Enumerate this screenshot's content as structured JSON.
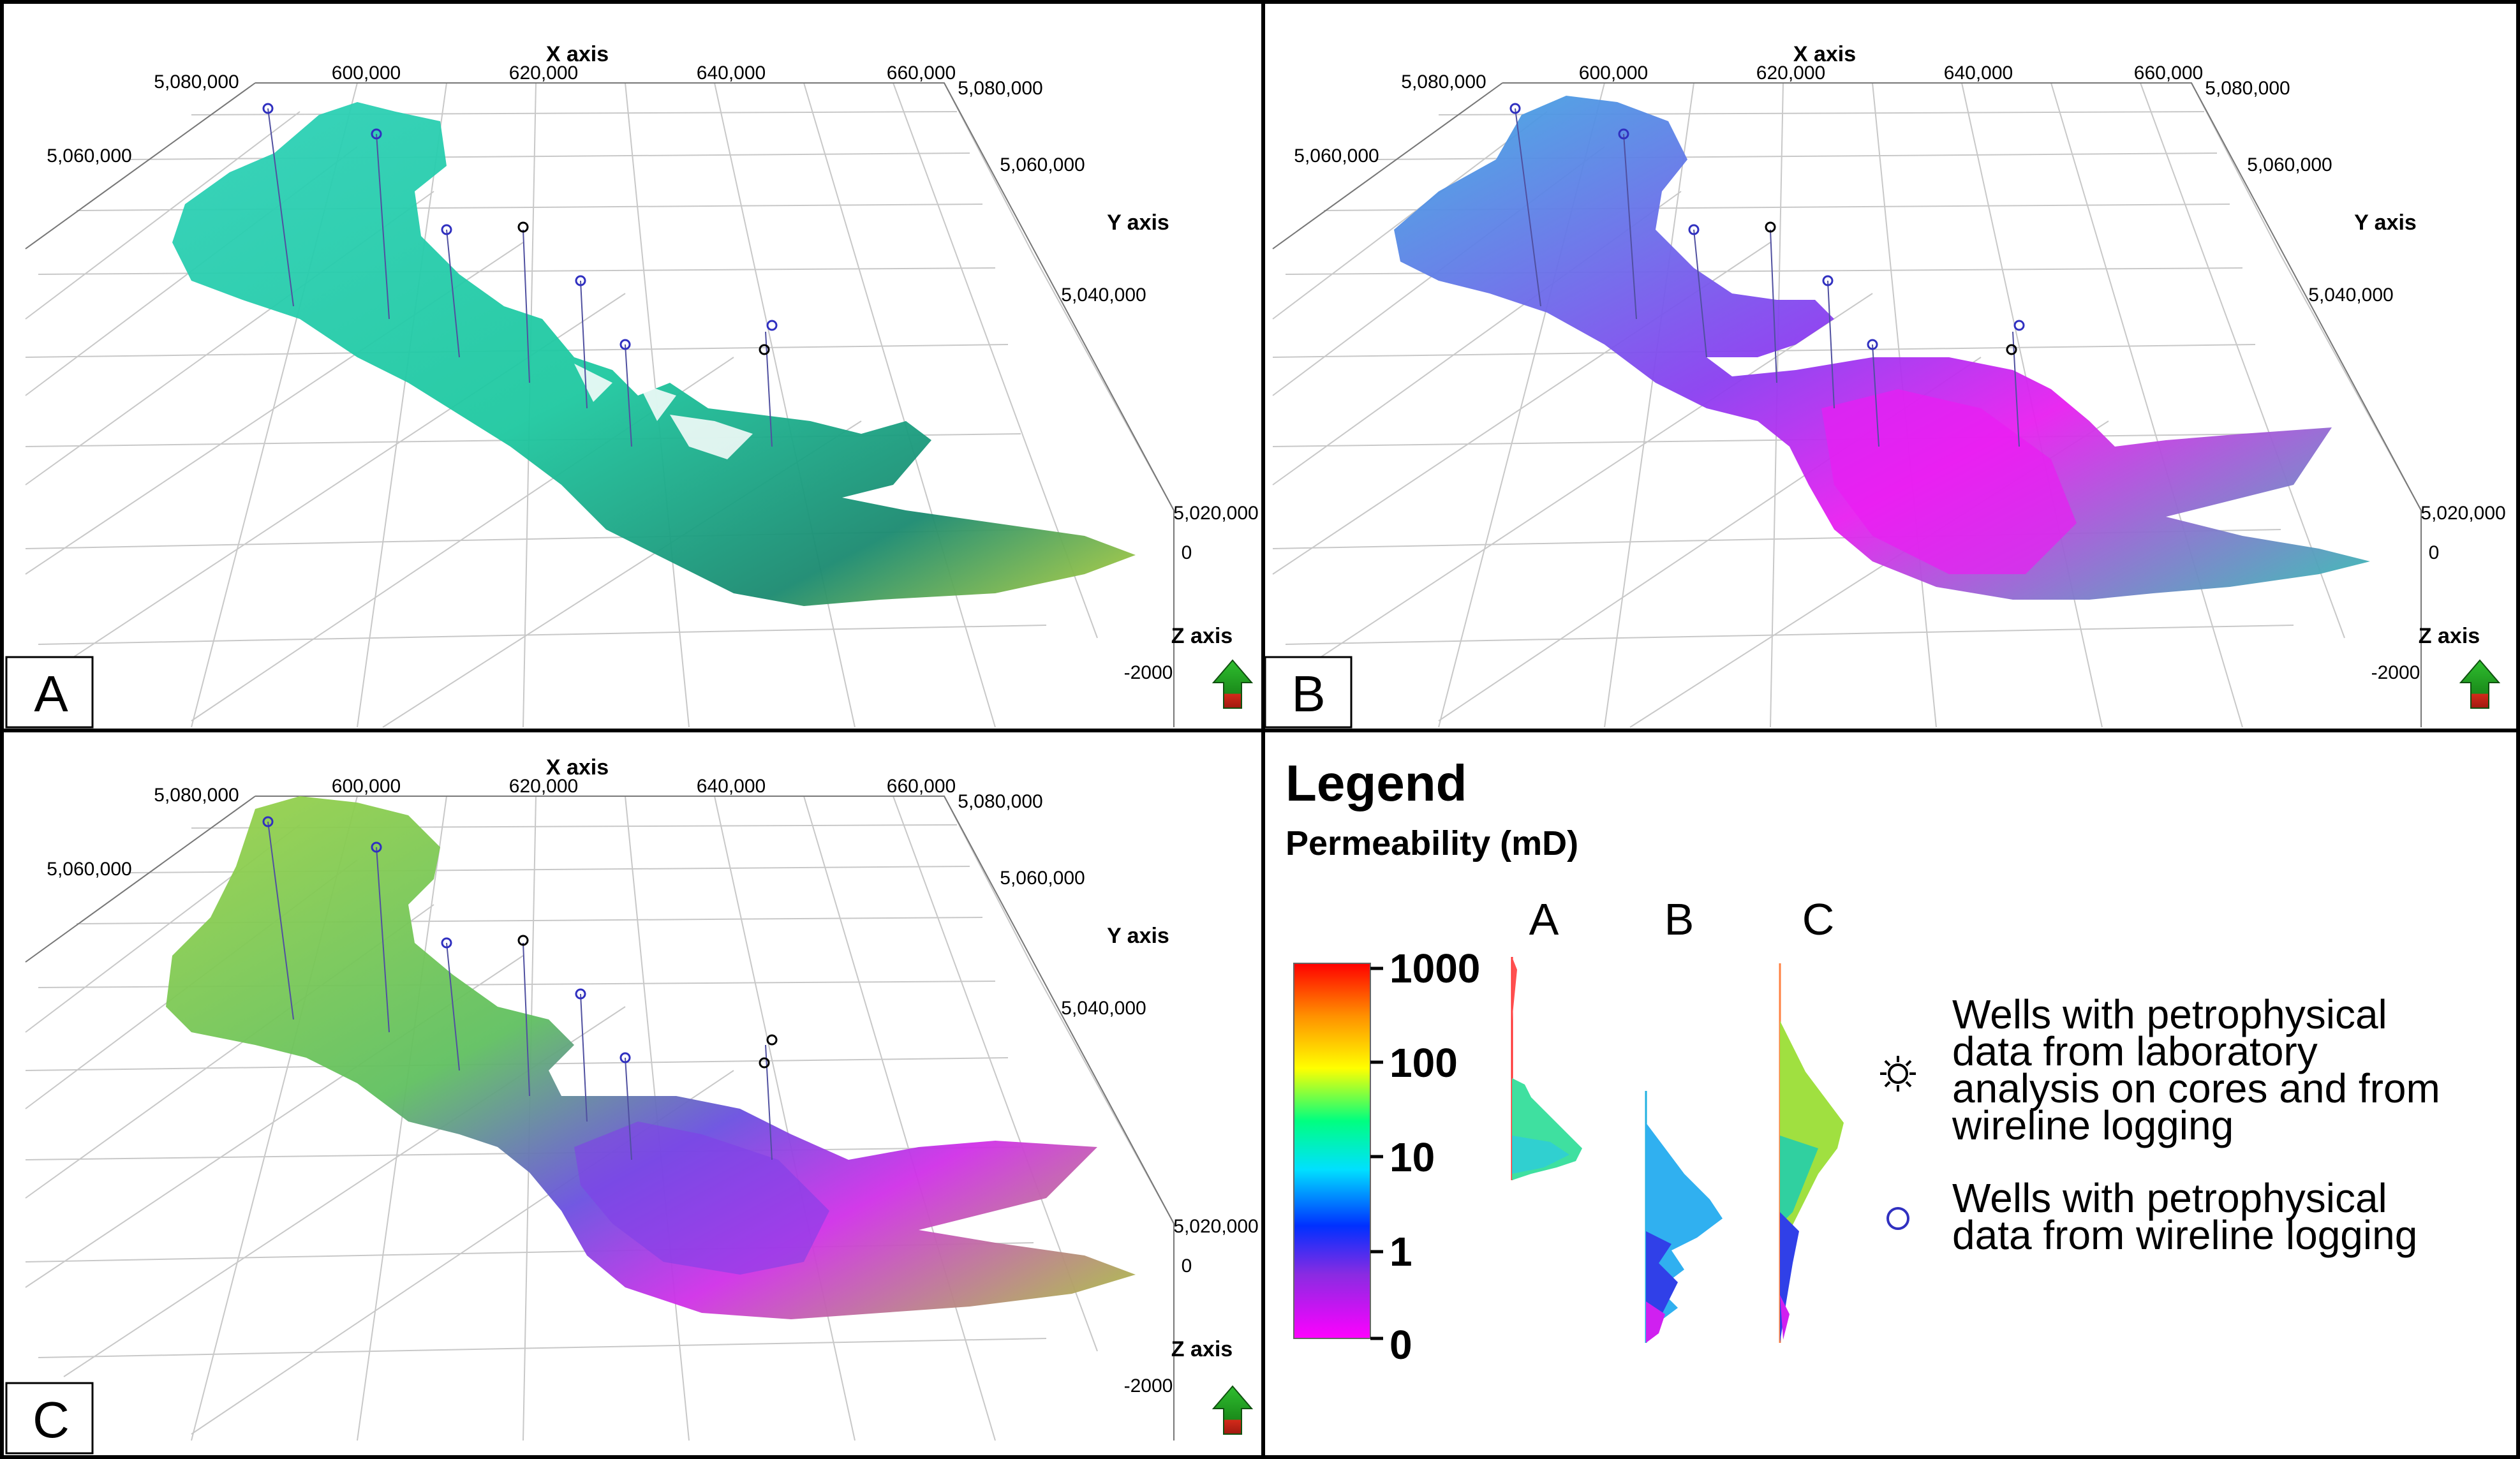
{
  "colors": {
    "perm_scale": [
      "#ff00ff",
      "#8a2be2",
      "#0000ff",
      "#00ffff",
      "#00ff80",
      "#ffff00",
      "#ff8000",
      "#ff0000"
    ],
    "panel_A_body": "#1fd1a6",
    "panel_B_body": "#e81ff0",
    "panel_C_body": "#4aa6e8",
    "arrow_green": "#2fa12f",
    "arrow_red": "#d42a1a",
    "well_circle": "#3030c0"
  },
  "panels": [
    {
      "id": "A",
      "label": "A"
    },
    {
      "id": "B",
      "label": "B"
    },
    {
      "id": "C",
      "label": "C"
    }
  ],
  "axes": {
    "x_label": "X axis",
    "y_label": "Y axis",
    "z_label": "Z axis",
    "x_ticks": [
      "600,000",
      "620,000",
      "640,000",
      "660,000"
    ],
    "x_left_tick": "5,080,000",
    "left_y_tick": "5,060,000",
    "y_ticks": [
      "5,080,000",
      "5,060,000",
      "5,040,000",
      "5,020,000"
    ],
    "z_ticks": [
      "0",
      "-2000"
    ]
  },
  "legend": {
    "title": "Legend",
    "subtitle": "Permeability (mD)",
    "columns": [
      "A",
      "B",
      "C"
    ],
    "scale_labels": [
      "1000",
      "100",
      "10",
      "1",
      "0"
    ],
    "wells": [
      {
        "icon": "sun-icon",
        "lines": [
          "Wells with petrophysical",
          "data from laboratory",
          "analysis on cores and from",
          "wireline logging"
        ]
      },
      {
        "icon": "circle-icon",
        "lines": [
          "Wells with petrophysical",
          "data from wireline logging"
        ]
      }
    ]
  }
}
